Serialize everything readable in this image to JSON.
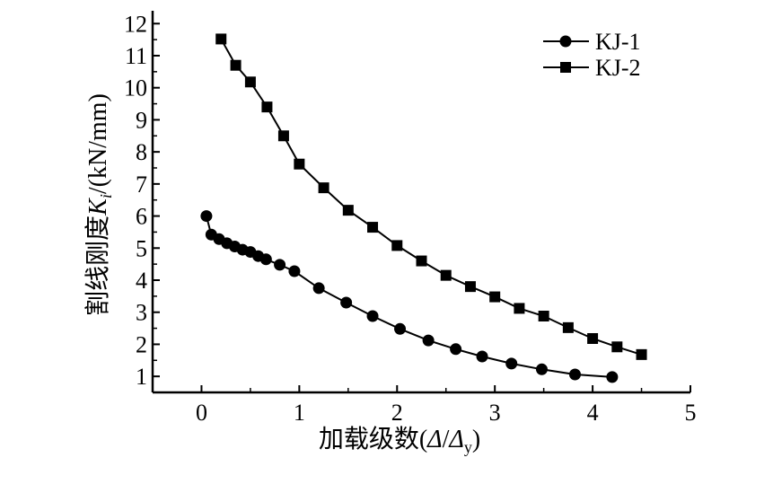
{
  "chart_data": {
    "type": "line",
    "xlabel": {
      "prefix": "加载级数(",
      "var1": "Δ",
      "slash": "/",
      "var2": "Δ",
      "sub": "y",
      "suffix": ")"
    },
    "ylabel": {
      "prefix": "割线刚度",
      "var": "K",
      "sub": "i",
      "suffix": "/(kN/mm)"
    },
    "xlim": [
      -0.5,
      5
    ],
    "ylim": [
      0.5,
      12.4
    ],
    "xticks": [
      0,
      1,
      2,
      3,
      4,
      5
    ],
    "yticks": [
      1,
      2,
      3,
      4,
      5,
      6,
      7,
      8,
      9,
      10,
      11,
      12
    ],
    "xtick_labels": [
      "0",
      "1",
      "2",
      "3",
      "4",
      "5"
    ],
    "ytick_labels": [
      "1",
      "2",
      "3",
      "4",
      "5",
      "6",
      "7",
      "8",
      "9",
      "10",
      "11",
      "12"
    ],
    "legend_position": "top-right",
    "series": [
      {
        "name": "KJ-1",
        "marker": "circle",
        "color": "#000000",
        "x": [
          0.05,
          0.1,
          0.18,
          0.26,
          0.34,
          0.42,
          0.5,
          0.58,
          0.66,
          0.8,
          0.95,
          1.2,
          1.48,
          1.75,
          2.03,
          2.32,
          2.6,
          2.87,
          3.17,
          3.48,
          3.82,
          4.2
        ],
        "y": [
          6.0,
          5.42,
          5.28,
          5.15,
          5.05,
          4.95,
          4.88,
          4.75,
          4.65,
          4.48,
          4.28,
          3.75,
          3.3,
          2.88,
          2.48,
          2.12,
          1.85,
          1.62,
          1.4,
          1.22,
          1.06,
          0.98
        ]
      },
      {
        "name": "KJ-2",
        "marker": "square",
        "color": "#000000",
        "x": [
          0.2,
          0.35,
          0.5,
          0.67,
          0.84,
          1.0,
          1.25,
          1.5,
          1.75,
          2.0,
          2.25,
          2.5,
          2.75,
          3.0,
          3.25,
          3.5,
          3.75,
          4.0,
          4.25,
          4.5
        ],
        "y": [
          11.52,
          10.7,
          10.18,
          9.4,
          8.5,
          7.62,
          6.88,
          6.18,
          5.65,
          5.08,
          4.6,
          4.15,
          3.8,
          3.48,
          3.12,
          2.88,
          2.52,
          2.18,
          1.92,
          1.68
        ]
      }
    ]
  }
}
